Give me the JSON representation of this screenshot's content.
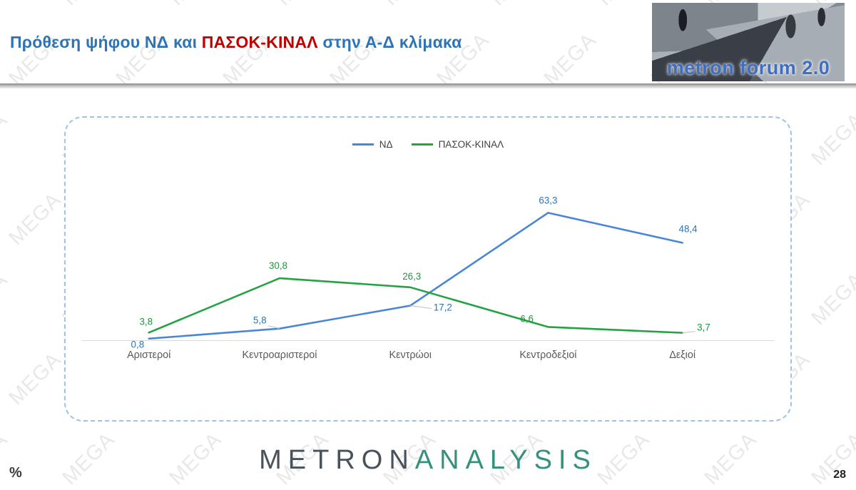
{
  "header": {
    "title_part1": "Πρόθεση ψήφου ΝΔ και ",
    "title_part2": "ΠΑΣΟΚ-ΚΙΝΑΛ",
    "title_part3": " στην Α-Δ κλίμακα",
    "title_color_primary": "#2E74B5",
    "title_color_accent": "#C00000"
  },
  "logo": {
    "text": "metron forum 2.0",
    "text_color": "#3F6FBE"
  },
  "watermark": {
    "text": "MEGA"
  },
  "chart_data": {
    "type": "line",
    "title": "Πρόθεση ψήφου ΝΔ και ΠΑΣΟΚ-ΚΙΝΑΛ στην Α-Δ κλίμακα",
    "categories": [
      "Αριστεροί",
      "Κεντροαριστεροί",
      "Κεντρώοι",
      "Κεντροδεξιοί",
      "Δεξιοί"
    ],
    "series": [
      {
        "name": "ΝΔ",
        "color": "#4A86D8",
        "label_color": "#2E74B5",
        "values": [
          0.8,
          5.8,
          17.2,
          63.3,
          48.4
        ]
      },
      {
        "name": "ΠΑΣΟΚ-ΚΙΝΑΛ",
        "color": "#25A244",
        "label_color": "#21963C",
        "values": [
          3.8,
          30.8,
          26.3,
          6.6,
          3.7
        ]
      }
    ],
    "ylim": [
      0,
      70
    ],
    "grid": false,
    "legend_position": "top",
    "unit": "%",
    "decimal_separator": ",",
    "axis_color": "#D9D9D9",
    "category_label_color": "#595959"
  },
  "footer": {
    "logo_part1": "METRON",
    "logo_part2": "ANALYSIS",
    "logo_color1": "#47525B",
    "logo_color2": "#35907C",
    "unit_label": "%",
    "page_number": "28"
  }
}
